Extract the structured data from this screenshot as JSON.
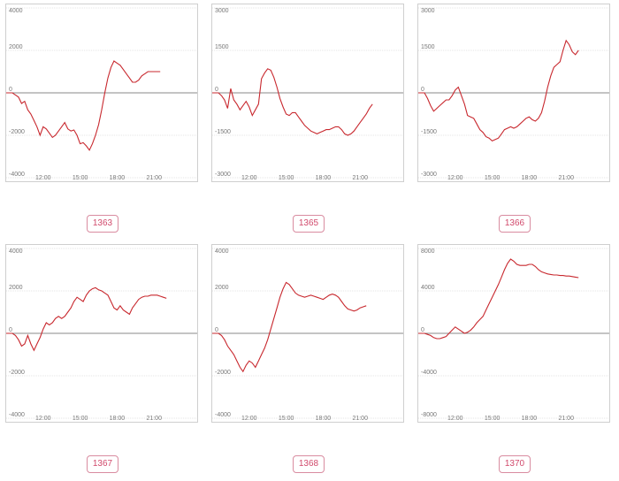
{
  "chart_data": [
    {
      "type": "line",
      "label": "1363",
      "ylim": [
        -4000,
        4000
      ],
      "yticks": [
        4000,
        2000,
        0,
        -2000,
        -4000
      ],
      "xlim": [
        540,
        1470
      ],
      "xticks": [
        {
          "t": 720,
          "label": "12:00"
        },
        {
          "t": 900,
          "label": "15:00"
        },
        {
          "t": 1080,
          "label": "18:00"
        },
        {
          "t": 1260,
          "label": "21:00"
        }
      ],
      "grid": true,
      "series": [
        {
          "color": "#c8282e",
          "x": [
            540,
            570,
            585,
            600,
            615,
            630,
            645,
            660,
            675,
            690,
            705,
            720,
            735,
            750,
            765,
            780,
            795,
            810,
            825,
            840,
            855,
            870,
            885,
            900,
            915,
            930,
            945,
            960,
            975,
            990,
            1005,
            1020,
            1035,
            1050,
            1065,
            1080,
            1095,
            1110,
            1125,
            1140,
            1155,
            1170,
            1185,
            1200,
            1215,
            1230,
            1245,
            1260,
            1275,
            1290
          ],
          "y": [
            0,
            0,
            -100,
            -200,
            -500,
            -400,
            -800,
            -1000,
            -1300,
            -1600,
            -2000,
            -1600,
            -1700,
            -1900,
            -2100,
            -2000,
            -1800,
            -1600,
            -1400,
            -1700,
            -1800,
            -1750,
            -2000,
            -2400,
            -2350,
            -2500,
            -2700,
            -2400,
            -2000,
            -1500,
            -800,
            0,
            700,
            1200,
            1500,
            1400,
            1300,
            1100,
            900,
            700,
            500,
            500,
            600,
            800,
            900,
            1000,
            1000,
            1000,
            1000,
            1000
          ]
        }
      ]
    },
    {
      "type": "line",
      "label": "1365",
      "ylim": [
        -3000,
        3000
      ],
      "yticks": [
        3000,
        1500,
        0,
        -1500,
        -3000
      ],
      "xlim": [
        540,
        1470
      ],
      "xticks": [
        {
          "t": 720,
          "label": "12:00"
        },
        {
          "t": 900,
          "label": "15:00"
        },
        {
          "t": 1080,
          "label": "18:00"
        },
        {
          "t": 1260,
          "label": "21:00"
        }
      ],
      "grid": true,
      "series": [
        {
          "color": "#c8282e",
          "x": [
            540,
            570,
            585,
            600,
            615,
            630,
            645,
            660,
            675,
            690,
            705,
            720,
            735,
            750,
            765,
            780,
            795,
            810,
            825,
            840,
            855,
            870,
            885,
            900,
            915,
            930,
            945,
            960,
            975,
            990,
            1005,
            1020,
            1035,
            1050,
            1065,
            1080,
            1095,
            1110,
            1125,
            1140,
            1155,
            1170,
            1185,
            1200,
            1215,
            1230,
            1245,
            1260,
            1275,
            1290,
            1305,
            1320
          ],
          "y": [
            0,
            0,
            -100,
            -250,
            -550,
            150,
            -250,
            -400,
            -600,
            -450,
            -300,
            -500,
            -800,
            -600,
            -400,
            500,
            700,
            850,
            800,
            550,
            200,
            -200,
            -500,
            -750,
            -800,
            -700,
            -700,
            -850,
            -1000,
            -1150,
            -1250,
            -1350,
            -1400,
            -1450,
            -1400,
            -1350,
            -1300,
            -1300,
            -1250,
            -1200,
            -1200,
            -1300,
            -1450,
            -1500,
            -1450,
            -1350,
            -1200,
            -1050,
            -900,
            -750,
            -550,
            -400
          ]
        }
      ]
    },
    {
      "type": "line",
      "label": "1366",
      "ylim": [
        -3000,
        3000
      ],
      "yticks": [
        3000,
        1500,
        0,
        -1500,
        -3000
      ],
      "xlim": [
        540,
        1470
      ],
      "xticks": [
        {
          "t": 720,
          "label": "12:00"
        },
        {
          "t": 900,
          "label": "15:00"
        },
        {
          "t": 1080,
          "label": "18:00"
        },
        {
          "t": 1260,
          "label": "21:00"
        }
      ],
      "grid": true,
      "series": [
        {
          "color": "#c8282e",
          "x": [
            540,
            570,
            585,
            600,
            615,
            630,
            645,
            660,
            675,
            690,
            705,
            720,
            735,
            750,
            765,
            780,
            795,
            810,
            825,
            840,
            855,
            870,
            885,
            900,
            915,
            930,
            945,
            960,
            975,
            990,
            1005,
            1020,
            1035,
            1050,
            1065,
            1080,
            1095,
            1110,
            1125,
            1140,
            1155,
            1170,
            1185,
            1200,
            1215,
            1230,
            1245,
            1260,
            1275,
            1290,
            1305,
            1320
          ],
          "y": [
            0,
            0,
            -200,
            -450,
            -650,
            -550,
            -450,
            -350,
            -250,
            -250,
            -100,
            100,
            200,
            -100,
            -400,
            -800,
            -850,
            -900,
            -1100,
            -1300,
            -1400,
            -1550,
            -1600,
            -1700,
            -1650,
            -1600,
            -1450,
            -1300,
            -1250,
            -1200,
            -1250,
            -1200,
            -1100,
            -1000,
            -900,
            -850,
            -950,
            -1000,
            -900,
            -700,
            -300,
            200,
            600,
            900,
            1000,
            1100,
            1500,
            1850,
            1700,
            1450,
            1350,
            1500
          ]
        }
      ]
    },
    {
      "type": "line",
      "label": "1367",
      "ylim": [
        -4000,
        4000
      ],
      "yticks": [
        4000,
        2000,
        0,
        -2000,
        -4000
      ],
      "xlim": [
        540,
        1470
      ],
      "xticks": [
        {
          "t": 720,
          "label": "12:00"
        },
        {
          "t": 900,
          "label": "15:00"
        },
        {
          "t": 1080,
          "label": "18:00"
        },
        {
          "t": 1260,
          "label": "21:00"
        }
      ],
      "grid": true,
      "series": [
        {
          "color": "#c8282e",
          "x": [
            540,
            570,
            585,
            600,
            615,
            630,
            645,
            660,
            675,
            690,
            705,
            720,
            735,
            750,
            765,
            780,
            795,
            810,
            825,
            840,
            855,
            870,
            885,
            900,
            915,
            930,
            945,
            960,
            975,
            990,
            1005,
            1020,
            1035,
            1050,
            1065,
            1080,
            1095,
            1110,
            1125,
            1140,
            1155,
            1170,
            1185,
            1200,
            1215,
            1230,
            1245,
            1260,
            1275,
            1290,
            1305,
            1320
          ],
          "y": [
            0,
            0,
            -100,
            -300,
            -600,
            -500,
            -100,
            -500,
            -800,
            -500,
            -200,
            200,
            500,
            400,
            500,
            700,
            800,
            700,
            800,
            1000,
            1200,
            1500,
            1700,
            1600,
            1500,
            1800,
            2000,
            2100,
            2150,
            2050,
            2000,
            1900,
            1800,
            1500,
            1200,
            1100,
            1300,
            1100,
            1000,
            900,
            1200,
            1400,
            1600,
            1700,
            1750,
            1750,
            1800,
            1800,
            1800,
            1750,
            1700,
            1650
          ]
        }
      ]
    },
    {
      "type": "line",
      "label": "1368",
      "ylim": [
        -4000,
        4000
      ],
      "yticks": [
        4000,
        2000,
        0,
        -2000,
        -4000
      ],
      "xlim": [
        540,
        1470
      ],
      "xticks": [
        {
          "t": 720,
          "label": "12:00"
        },
        {
          "t": 900,
          "label": "15:00"
        },
        {
          "t": 1080,
          "label": "18:00"
        },
        {
          "t": 1260,
          "label": "21:00"
        }
      ],
      "grid": true,
      "series": [
        {
          "color": "#c8282e",
          "x": [
            540,
            570,
            585,
            600,
            615,
            630,
            645,
            660,
            675,
            690,
            705,
            720,
            735,
            750,
            765,
            780,
            795,
            810,
            825,
            840,
            855,
            870,
            885,
            900,
            915,
            930,
            945,
            960,
            975,
            990,
            1005,
            1020,
            1035,
            1050,
            1065,
            1080,
            1095,
            1110,
            1125,
            1140,
            1155,
            1170,
            1185,
            1200,
            1215,
            1230,
            1245,
            1260,
            1275,
            1290
          ],
          "y": [
            0,
            0,
            -100,
            -300,
            -600,
            -800,
            -1000,
            -1300,
            -1600,
            -1800,
            -1500,
            -1300,
            -1400,
            -1600,
            -1300,
            -1000,
            -700,
            -300,
            200,
            700,
            1200,
            1700,
            2100,
            2400,
            2300,
            2100,
            1900,
            1800,
            1750,
            1700,
            1750,
            1800,
            1750,
            1700,
            1650,
            1600,
            1700,
            1800,
            1850,
            1800,
            1700,
            1500,
            1300,
            1150,
            1100,
            1050,
            1100,
            1200,
            1250,
            1300
          ]
        }
      ]
    },
    {
      "type": "line",
      "label": "1370",
      "ylim": [
        -8000,
        8000
      ],
      "yticks": [
        8000,
        4000,
        0,
        -4000,
        -8000
      ],
      "xlim": [
        540,
        1470
      ],
      "xticks": [
        {
          "t": 720,
          "label": "12:00"
        },
        {
          "t": 900,
          "label": "15:00"
        },
        {
          "t": 1080,
          "label": "18:00"
        },
        {
          "t": 1260,
          "label": "21:00"
        }
      ],
      "grid": true,
      "series": [
        {
          "color": "#c8282e",
          "x": [
            540,
            570,
            585,
            600,
            615,
            630,
            645,
            660,
            675,
            690,
            705,
            720,
            735,
            750,
            765,
            780,
            795,
            810,
            825,
            840,
            855,
            870,
            885,
            900,
            915,
            930,
            945,
            960,
            975,
            990,
            1005,
            1020,
            1035,
            1050,
            1065,
            1080,
            1095,
            1110,
            1125,
            1140,
            1155,
            1170,
            1185,
            1200,
            1215,
            1230,
            1245,
            1260,
            1275,
            1290,
            1305,
            1320
          ],
          "y": [
            0,
            0,
            -100,
            -200,
            -400,
            -500,
            -500,
            -400,
            -300,
            0,
            300,
            600,
            400,
            200,
            0,
            100,
            300,
            600,
            1000,
            1300,
            1600,
            2200,
            2800,
            3400,
            4000,
            4600,
            5300,
            6000,
            6600,
            7000,
            6800,
            6500,
            6400,
            6400,
            6400,
            6500,
            6500,
            6300,
            6000,
            5800,
            5700,
            5600,
            5550,
            5500,
            5500,
            5450,
            5450,
            5400,
            5400,
            5350,
            5300,
            5250
          ]
        }
      ]
    }
  ]
}
